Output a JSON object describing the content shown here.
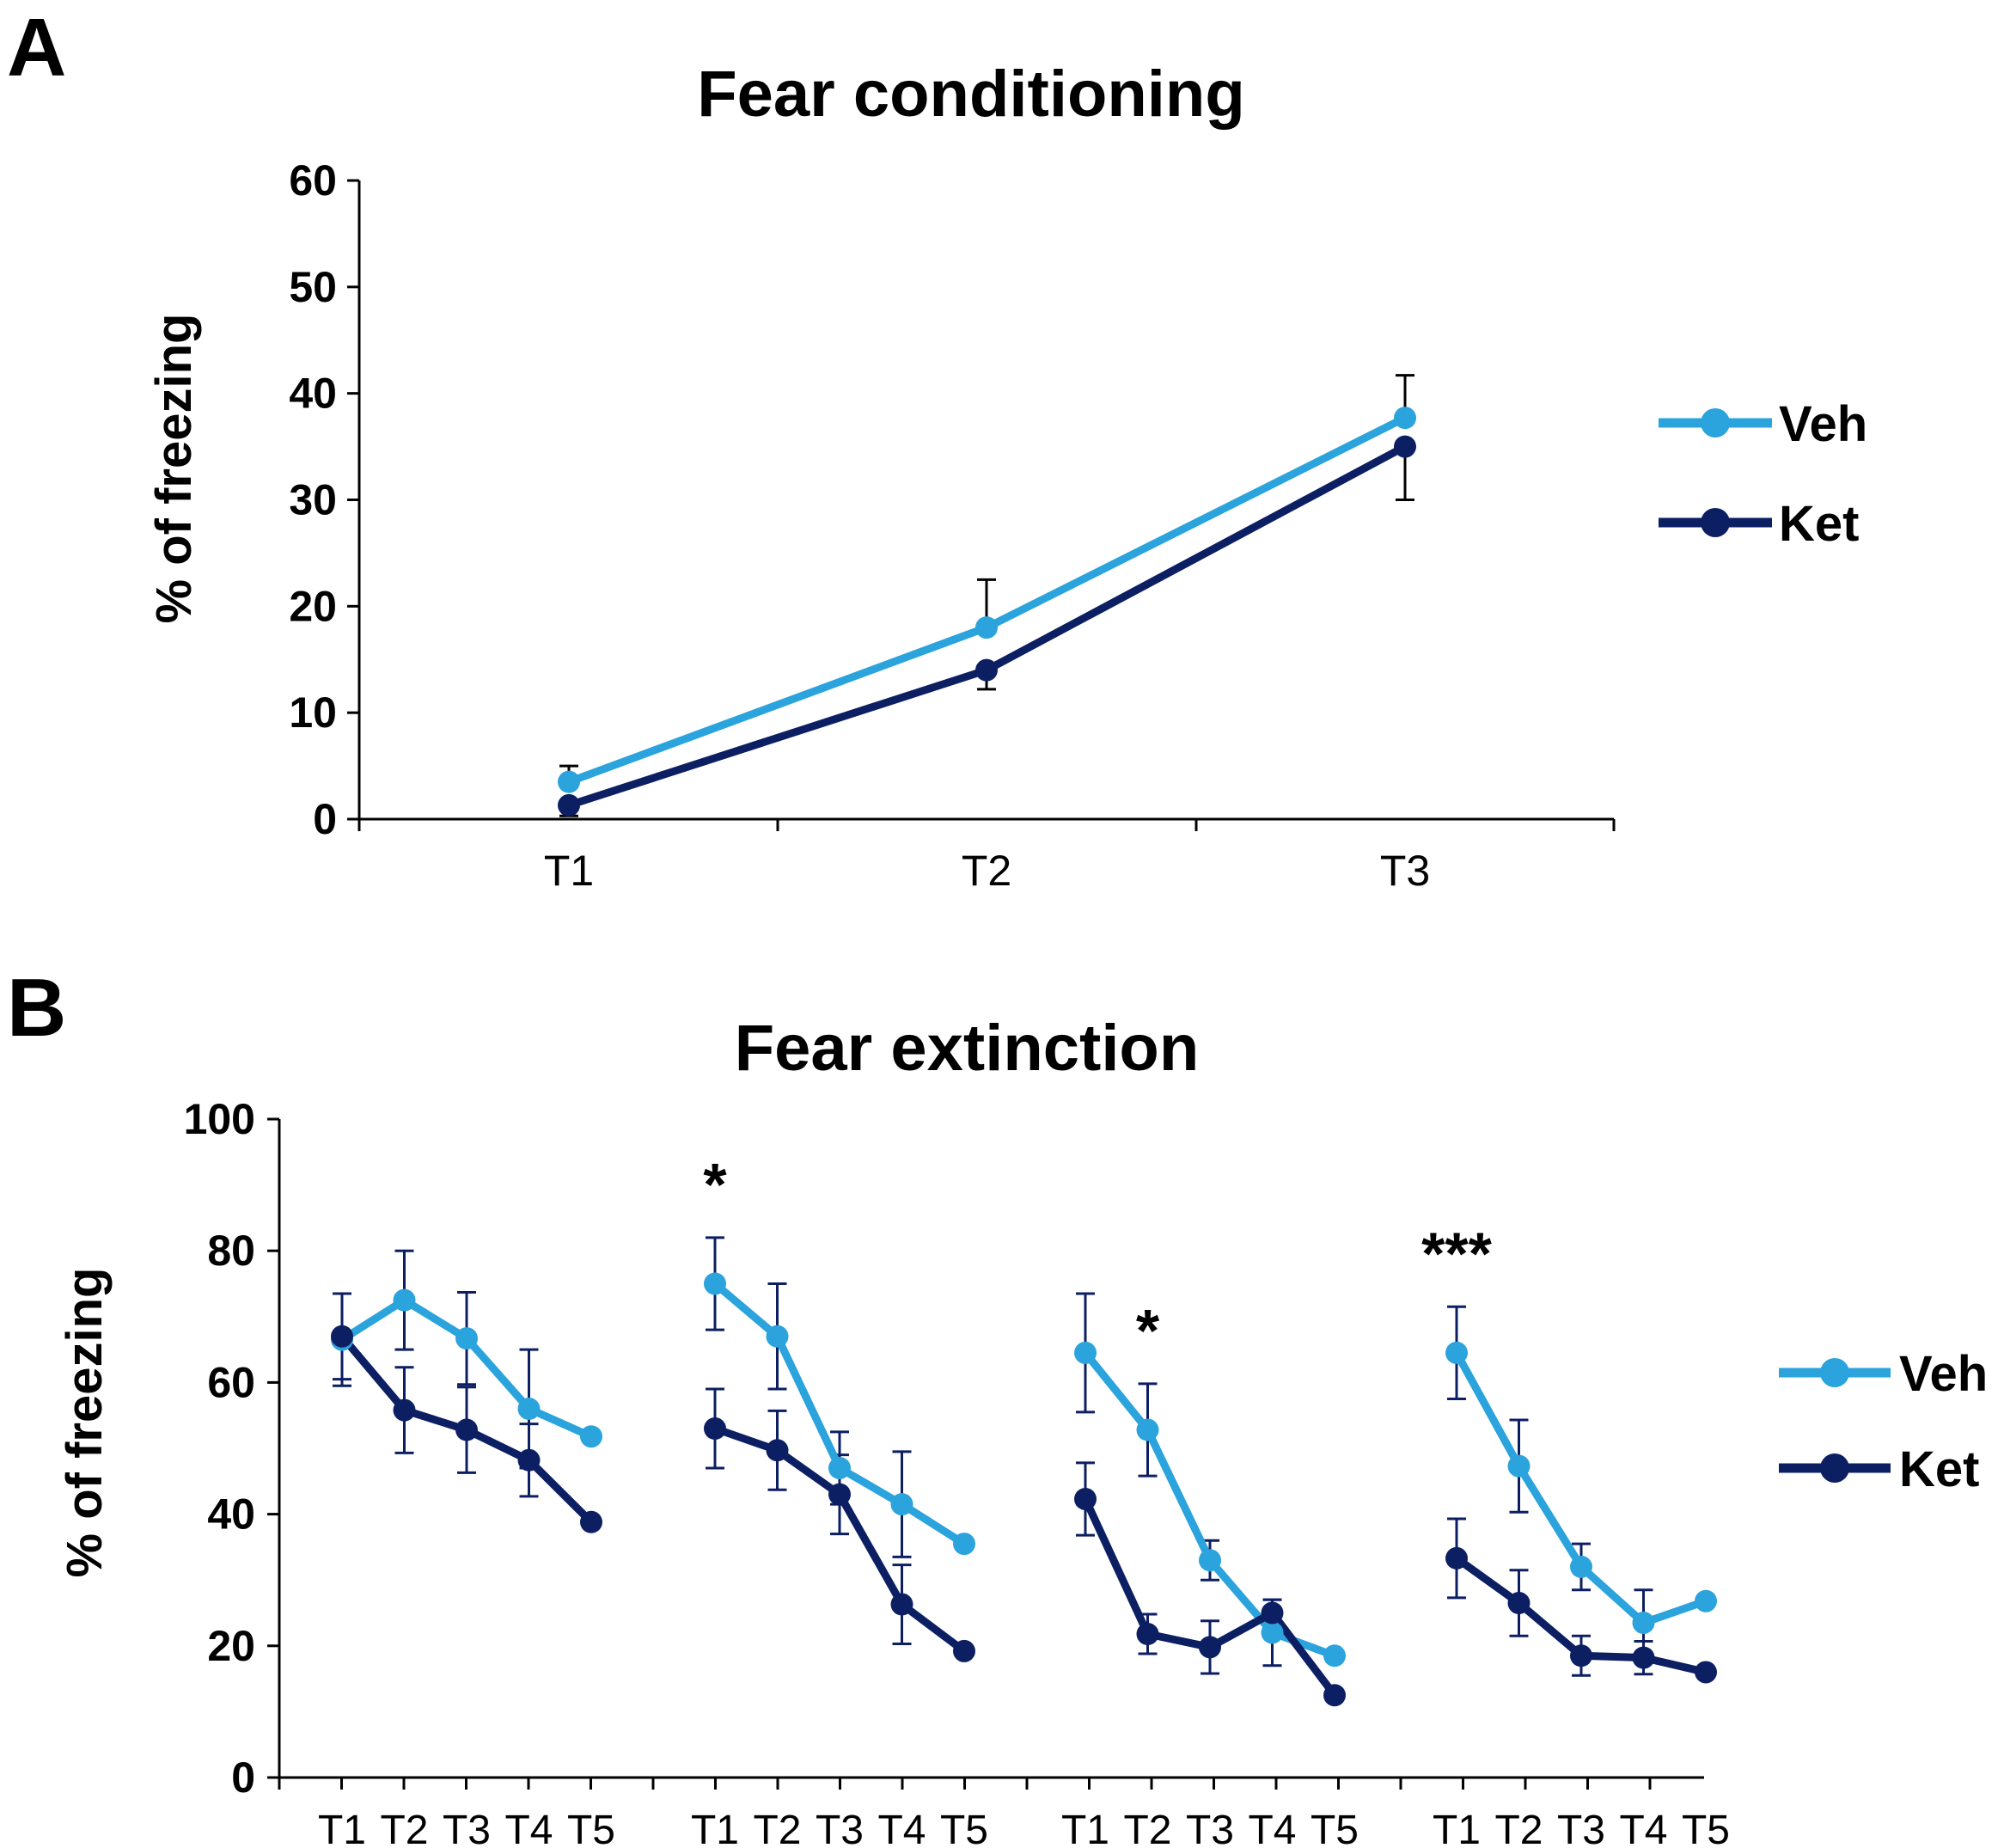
{
  "chart_data": [
    {
      "panel": "A",
      "type": "line",
      "title": "Fear conditioning",
      "ylabel": "% of freezing",
      "xlabel": "",
      "ylim": [
        0,
        60
      ],
      "yticks": [
        "0",
        "10",
        "20",
        "30",
        "40",
        "50",
        "60"
      ],
      "categories": [
        "T1",
        "T2",
        "T3"
      ],
      "series": [
        {
          "name": "Veh",
          "color": "#2ba3dc",
          "values": [
            3.5,
            18,
            37.7
          ],
          "errors": [
            1.5,
            4.5,
            4
          ]
        },
        {
          "name": "Ket",
          "color": "#0d1f63",
          "values": [
            1.3,
            14,
            35
          ],
          "errors": [
            1,
            1.8,
            5
          ]
        }
      ],
      "legend": "right"
    },
    {
      "panel": "B",
      "type": "line",
      "title": "Fear extinction",
      "ylabel": "% of freezing",
      "xlabel": "",
      "ylim": [
        0,
        100
      ],
      "yticks": [
        "0",
        "20",
        "40",
        "60",
        "80",
        "100"
      ],
      "groups": [
        {
          "categories": [
            "T1",
            "T2",
            "T3",
            "T4",
            "T5"
          ],
          "significance": [
            "",
            "",
            "",
            "",
            ""
          ]
        },
        {
          "categories": [
            "T1",
            "T2",
            "T3",
            "T4",
            "T5"
          ],
          "significance": [
            "*",
            "",
            "",
            "",
            ""
          ]
        },
        {
          "categories": [
            "T1",
            "T2",
            "T3",
            "T4",
            "T5"
          ],
          "significance": [
            "",
            "*",
            "",
            "",
            ""
          ]
        },
        {
          "categories": [
            "T1",
            "T2",
            "T3",
            "T4",
            "T5"
          ],
          "significance": [
            "***",
            "",
            "",
            "",
            ""
          ]
        }
      ],
      "series": [
        {
          "name": "Veh",
          "color": "#2ba3dc",
          "values": [
            [
              66.5,
              72.5,
              66.7,
              56,
              51.8
            ],
            [
              75,
              67,
              47,
              41.5,
              35.5
            ],
            [
              64.5,
              52.8,
              33,
              22,
              18.5
            ],
            [
              64.5,
              47.3,
              32,
              23.5,
              26.8
            ]
          ],
          "errors": [
            [
              7,
              7.5,
              7,
              9,
              0
            ],
            [
              7,
              8,
              5.5,
              8,
              0
            ],
            [
              9,
              7,
              3,
              5,
              0
            ],
            [
              7,
              7,
              3.5,
              5,
              0
            ]
          ]
        },
        {
          "name": "Ket",
          "color": "#0d1f63",
          "values": [
            [
              67,
              55.8,
              52.8,
              48.2,
              38.8
            ],
            [
              53,
              49.7,
              43,
              26.3,
              19.2
            ],
            [
              42.3,
              21.8,
              19.8,
              25,
              12.5
            ],
            [
              33.3,
              26.5,
              18.5,
              18.2,
              16
            ]
          ],
          "errors": [
            [
              6.5,
              6.5,
              6.5,
              5.5,
              0
            ],
            [
              6,
              6,
              6,
              6,
              0
            ],
            [
              5.5,
              3,
              4,
              2,
              0
            ],
            [
              6,
              5,
              3,
              2.5,
              0
            ]
          ]
        }
      ],
      "legend": "right"
    }
  ]
}
